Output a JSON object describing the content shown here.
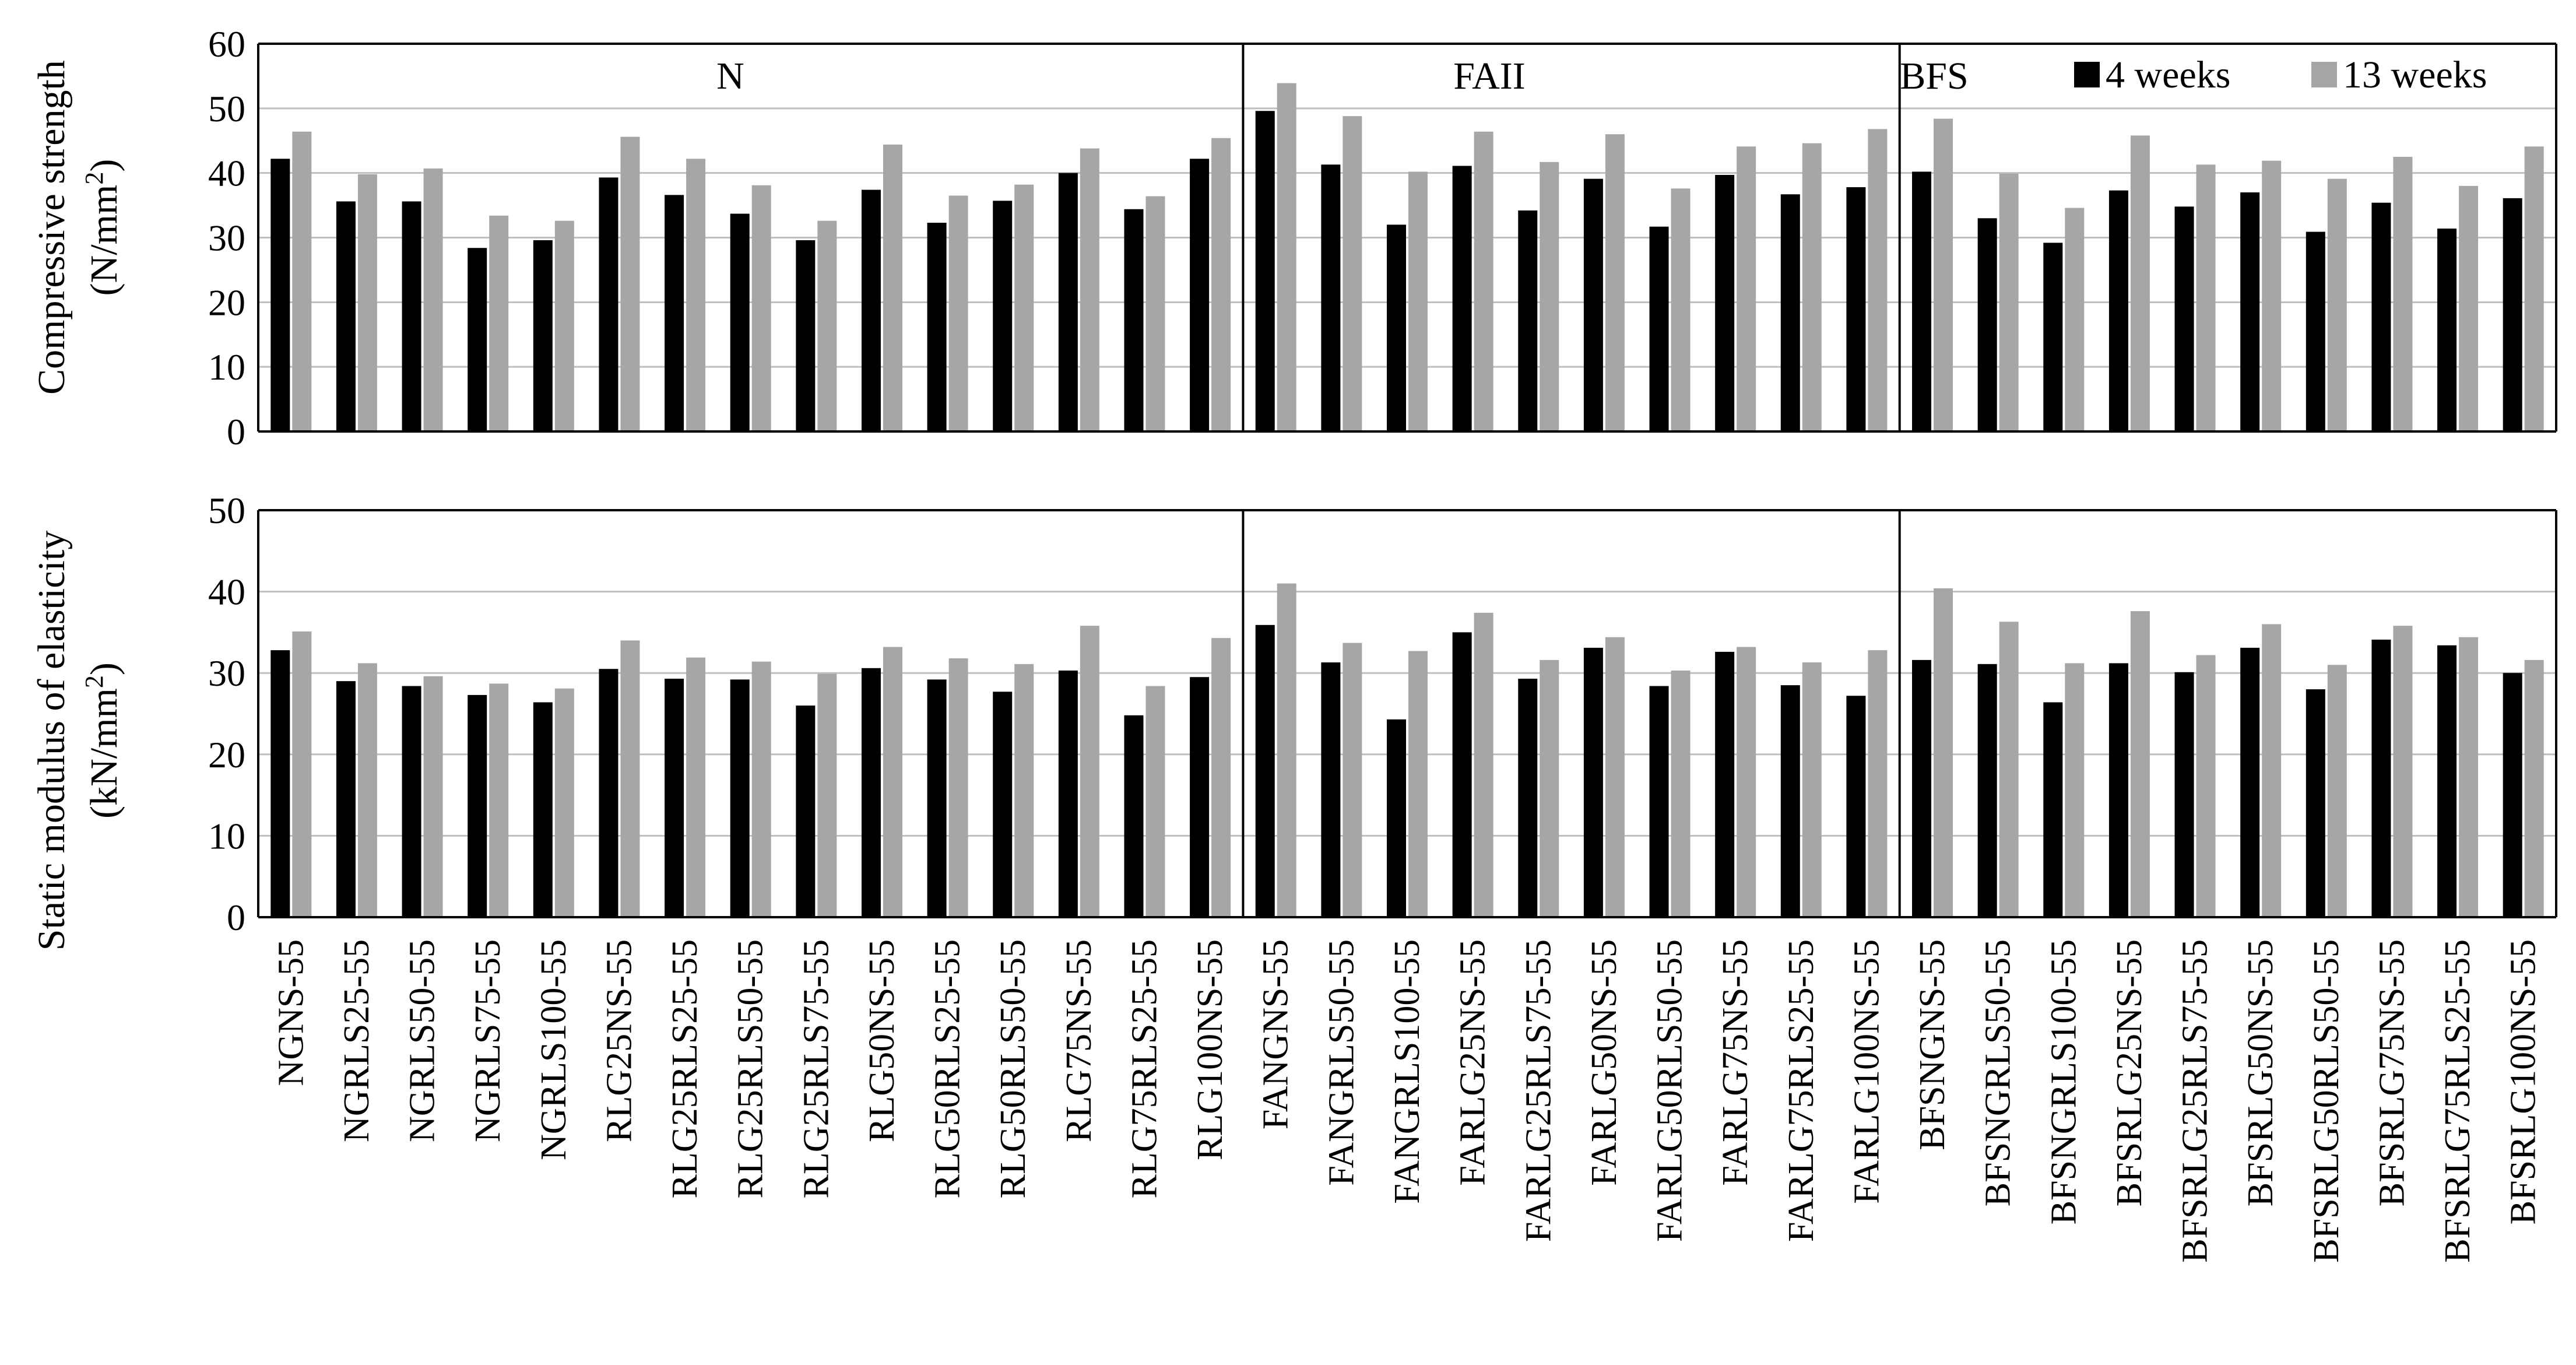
{
  "colors": {
    "week4": "#000000",
    "week13": "#a6a6a6",
    "grid": "#bfbfbf",
    "axis": "#000000"
  },
  "legend": {
    "placement": "top-right",
    "items": [
      "4 weeks",
      "13 weeks"
    ]
  },
  "groups": [
    "N",
    "FAII",
    "BFS"
  ],
  "chart_data": [
    {
      "type": "bar",
      "ylabel_line1": "Compressive strength",
      "ylabel_line2_prefix": "(N/mm",
      "ylabel_line2_sup": "2",
      "ylabel_line2_suffix": ")",
      "ylim": [
        0,
        60
      ],
      "yticks": [
        "0",
        "10",
        "20",
        "30",
        "40",
        "50",
        "60"
      ],
      "grid": true,
      "categories": [
        "NGNS-55",
        "NGRLS25-55",
        "NGRLS50-55",
        "NGRLS75-55",
        "NGRLS100-55",
        "RLG25NS-55",
        "RLG25RLS25-55",
        "RLG25RLS50-55",
        "RLG25RLS75-55",
        "RLG50NS-55",
        "RLG50RLS25-55",
        "RLG50RLS50-55",
        "RLG75NS-55",
        "RLG75RLS25-55",
        "RLG100NS-55",
        "FANGNS-55",
        "FANGRLS50-55",
        "FANGRLS100-55",
        "FARLG25NS-55",
        "FARLG25RLS75-55",
        "FARLG50NS-55",
        "FARLG50RLS50-55",
        "FARLG75NS-55",
        "FARLG75RLS25-55",
        "FARLG100NS-55",
        "BFSNGNS-55",
        "BFSNGRLS50-55",
        "BFSNGRLS100-55",
        "BFSRLG25NS-55",
        "BFSRLG25RLS75-55",
        "BFSRLG50NS-55",
        "BFSRLG50RLS50-55",
        "BFSRLG75NS-55",
        "BFSRLG75RLS25-55",
        "BFSRLG100NS-55"
      ],
      "series": [
        {
          "name": "4 weeks",
          "values": [
            42.2,
            35.6,
            35.6,
            28.4,
            29.6,
            39.3,
            36.6,
            33.7,
            29.6,
            37.4,
            32.3,
            35.7,
            40.0,
            34.4,
            42.2,
            49.6,
            41.3,
            32.0,
            41.1,
            34.2,
            39.1,
            31.7,
            39.7,
            36.7,
            37.8,
            40.2,
            33.0,
            29.2,
            37.3,
            34.8,
            37.0,
            30.9,
            35.4,
            31.4,
            36.1
          ]
        },
        {
          "name": "13 weeks",
          "values": [
            46.4,
            39.8,
            40.7,
            33.4,
            32.6,
            45.6,
            42.2,
            38.1,
            32.6,
            44.4,
            36.5,
            38.2,
            43.8,
            36.4,
            45.4,
            53.9,
            48.8,
            40.2,
            46.4,
            41.7,
            46.0,
            37.6,
            44.1,
            44.6,
            46.8,
            48.4,
            39.9,
            34.6,
            45.8,
            41.3,
            41.9,
            39.1,
            42.5,
            38.0,
            44.1
          ]
        }
      ]
    },
    {
      "type": "bar",
      "ylabel_line1": "Static modulus of elasticity",
      "ylabel_line2_prefix": "(kN/mm",
      "ylabel_line2_sup": "2",
      "ylabel_line2_suffix": ")",
      "ylim": [
        0,
        50
      ],
      "yticks": [
        "0",
        "10",
        "20",
        "30",
        "40",
        "50"
      ],
      "grid": true,
      "categories": [
        "NGNS-55",
        "NGRLS25-55",
        "NGRLS50-55",
        "NGRLS75-55",
        "NGRLS100-55",
        "RLG25NS-55",
        "RLG25RLS25-55",
        "RLG25RLS50-55",
        "RLG25RLS75-55",
        "RLG50NS-55",
        "RLG50RLS25-55",
        "RLG50RLS50-55",
        "RLG75NS-55",
        "RLG75RLS25-55",
        "RLG100NS-55",
        "FANGNS-55",
        "FANGRLS50-55",
        "FANGRLS100-55",
        "FARLG25NS-55",
        "FARLG25RLS75-55",
        "FARLG50NS-55",
        "FARLG50RLS50-55",
        "FARLG75NS-55",
        "FARLG75RLS25-55",
        "FARLG100NS-55",
        "BFSNGNS-55",
        "BFSNGRLS50-55",
        "BFSNGRLS100-55",
        "BFSRLG25NS-55",
        "BFSRLG25RLS75-55",
        "BFSRLG50NS-55",
        "BFSRLG50RLS50-55",
        "BFSRLG75NS-55",
        "BFSRLG75RLS25-55",
        "BFSRLG100NS-55"
      ],
      "series": [
        {
          "name": "4 weeks",
          "values": [
            32.8,
            29.0,
            28.4,
            27.3,
            26.4,
            30.5,
            29.3,
            29.2,
            26.0,
            30.6,
            29.2,
            27.7,
            30.3,
            24.8,
            29.5,
            35.9,
            31.3,
            24.3,
            35.0,
            29.3,
            33.1,
            28.4,
            32.6,
            28.5,
            27.2,
            31.6,
            31.1,
            26.4,
            31.2,
            30.1,
            33.1,
            28.0,
            34.1,
            33.4,
            30.0
          ]
        },
        {
          "name": "13 weeks",
          "values": [
            35.1,
            31.2,
            29.6,
            28.7,
            28.1,
            34.0,
            31.9,
            31.4,
            29.9,
            33.2,
            31.8,
            31.1,
            35.8,
            28.4,
            34.3,
            41.0,
            33.7,
            32.7,
            37.4,
            31.6,
            34.4,
            30.3,
            33.2,
            31.3,
            32.8,
            40.4,
            36.3,
            31.2,
            37.6,
            32.2,
            36.0,
            31.0,
            35.8,
            34.4,
            31.6
          ]
        }
      ]
    }
  ]
}
